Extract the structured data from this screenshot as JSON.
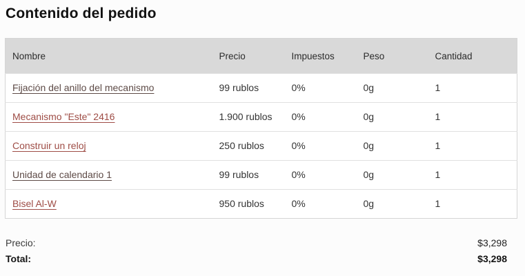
{
  "page": {
    "title": "Contenido del pedido"
  },
  "table": {
    "headers": [
      "Nombre",
      "Precio",
      "Impuestos",
      "Peso",
      "Cantidad"
    ],
    "rows": [
      {
        "name": "Fijación del anillo del mecanismo",
        "price": "99 rublos",
        "tax": "0%",
        "weight": "0g",
        "qty": "1",
        "visited": true
      },
      {
        "name": "Mecanismo \"Este\" 2416",
        "price": "1.900 rublos",
        "tax": "0%",
        "weight": "0g",
        "qty": "1",
        "visited": false
      },
      {
        "name": "Construir un reloj",
        "price": "250 rublos",
        "tax": "0%",
        "weight": "0g",
        "qty": "1",
        "visited": false
      },
      {
        "name": "Unidad de calendario 1",
        "price": "99 rublos",
        "tax": "0%",
        "weight": "0g",
        "qty": "1",
        "visited": true
      },
      {
        "name": "Bisel Al-W",
        "price": "950 rublos",
        "tax": "0%",
        "weight": "0g",
        "qty": "1",
        "visited": false
      }
    ]
  },
  "summary": {
    "price_label": "Precio:",
    "price_value": "$3,298",
    "total_label": "Total:",
    "total_value": "$3,298"
  },
  "colors": {
    "link": "#9e4c45",
    "link_visited": "#5d4a46",
    "header_bg": "#d9d9d9",
    "row_border": "#e0e0e0",
    "table_border": "#d5d5d5",
    "title_text": "#111111"
  }
}
